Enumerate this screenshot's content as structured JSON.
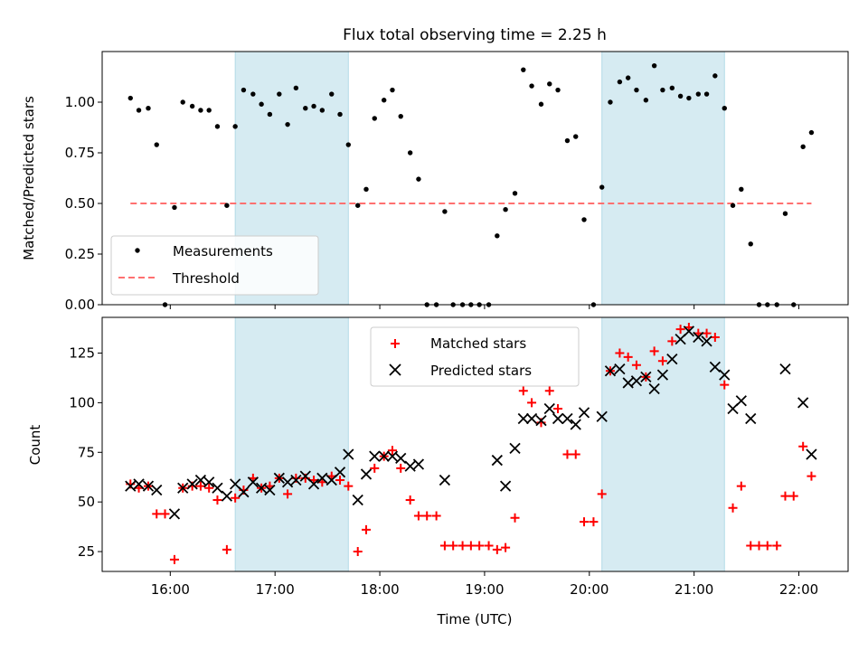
{
  "figure": {
    "title": "Flux total observing time = 2.25 h"
  },
  "chart_data": [
    {
      "type": "scatter",
      "ylabel": "Matched/Predicted stars",
      "xlabel": "",
      "x_unit": "hours UTC",
      "xlim": [
        15.35,
        22.47
      ],
      "ylim": [
        0.0,
        1.25
      ],
      "yticks": [
        0.0,
        0.25,
        0.5,
        0.75,
        1.0
      ],
      "ytick_labels": [
        "0.00",
        "0.25",
        "0.50",
        "0.75",
        "1.00"
      ],
      "grid": false,
      "legend_position": "lower-left",
      "shaded_regions": [
        [
          16.62,
          17.7
        ],
        [
          20.12,
          21.29
        ]
      ],
      "shade_color": "#add8e6",
      "threshold": {
        "name": "Threshold",
        "value": 0.5,
        "x_range": [
          15.62,
          22.12
        ],
        "color": "#ff7070"
      },
      "series": [
        {
          "name": "Measurements",
          "color": "#000000",
          "x": [
            15.62,
            15.7,
            15.79,
            15.87,
            15.95,
            16.04,
            16.12,
            16.21,
            16.29,
            16.37,
            16.45,
            16.54,
            16.62,
            16.7,
            16.79,
            16.87,
            16.95,
            17.04,
            17.12,
            17.2,
            17.29,
            17.37,
            17.45,
            17.54,
            17.62,
            17.7,
            17.79,
            17.87,
            17.95,
            18.04,
            18.12,
            18.2,
            18.29,
            18.37,
            18.45,
            18.54,
            18.62,
            18.7,
            18.79,
            18.87,
            18.95,
            19.04,
            19.12,
            19.2,
            19.29,
            19.37,
            19.45,
            19.54,
            19.62,
            19.7,
            19.79,
            19.87,
            19.95,
            20.04,
            20.12,
            20.2,
            20.29,
            20.37,
            20.45,
            20.54,
            20.62,
            20.7,
            20.79,
            20.87,
            20.95,
            21.04,
            21.12,
            21.2,
            21.29,
            21.37,
            21.45,
            21.54,
            21.62,
            21.7,
            21.79,
            21.87,
            21.95,
            22.04,
            22.12
          ],
          "y": [
            1.02,
            0.96,
            0.97,
            0.79,
            0.0,
            0.48,
            1.0,
            0.98,
            0.96,
            0.96,
            0.88,
            0.49,
            0.88,
            1.06,
            1.04,
            0.99,
            0.94,
            1.04,
            0.89,
            1.07,
            0.97,
            0.98,
            0.96,
            1.04,
            0.94,
            0.79,
            0.49,
            0.57,
            0.92,
            1.01,
            1.06,
            0.93,
            0.75,
            0.62,
            0.0,
            0.0,
            0.46,
            0.0,
            0.0,
            0.0,
            0.0,
            0.0,
            0.34,
            0.47,
            0.55,
            1.16,
            1.08,
            0.99,
            1.09,
            1.06,
            0.81,
            0.83,
            0.42,
            0.0,
            0.58,
            1.0,
            1.1,
            1.12,
            1.06,
            1.01,
            1.18,
            1.06,
            1.07,
            1.03,
            1.02,
            1.04,
            1.04,
            1.13,
            0.97,
            0.49,
            0.57,
            0.3,
            0.0,
            0.0,
            0.0,
            0.45,
            0.0,
            0.78,
            0.85
          ]
        }
      ]
    },
    {
      "type": "scatter",
      "ylabel": "Count",
      "xlabel": "Time (UTC)",
      "x_unit": "hours UTC",
      "xlim": [
        15.35,
        22.47
      ],
      "ylim": [
        15,
        143
      ],
      "yticks": [
        25,
        50,
        75,
        100,
        125
      ],
      "ytick_labels": [
        "25",
        "50",
        "75",
        "100",
        "125"
      ],
      "xticks": [
        16,
        17,
        18,
        19,
        20,
        21,
        22
      ],
      "xtick_labels": [
        "16:00",
        "17:00",
        "18:00",
        "19:00",
        "20:00",
        "21:00",
        "22:00"
      ],
      "grid": false,
      "legend_position": "upper-center",
      "shaded_regions": [
        [
          16.62,
          17.7
        ],
        [
          20.12,
          21.29
        ]
      ],
      "shade_color": "#add8e6",
      "series": [
        {
          "name": "Matched stars",
          "marker": "plus",
          "color": "#ff0000",
          "x": [
            15.62,
            15.7,
            15.79,
            15.87,
            15.95,
            16.04,
            16.12,
            16.21,
            16.29,
            16.37,
            16.45,
            16.54,
            16.62,
            16.7,
            16.79,
            16.87,
            16.95,
            17.04,
            17.12,
            17.2,
            17.29,
            17.37,
            17.45,
            17.54,
            17.62,
            17.7,
            17.79,
            17.87,
            17.95,
            18.04,
            18.12,
            18.2,
            18.29,
            18.37,
            18.45,
            18.54,
            18.62,
            18.7,
            18.79,
            18.87,
            18.95,
            19.04,
            19.12,
            19.2,
            19.29,
            19.37,
            19.45,
            19.54,
            19.62,
            19.7,
            19.79,
            19.87,
            19.95,
            20.04,
            20.12,
            20.2,
            20.29,
            20.37,
            20.45,
            20.54,
            20.62,
            20.7,
            20.79,
            20.87,
            20.95,
            21.04,
            21.12,
            21.2,
            21.29,
            21.37,
            21.45,
            21.54,
            21.62,
            21.7,
            21.79,
            21.87,
            21.95,
            22.04,
            22.12
          ],
          "y": [
            59,
            57,
            58,
            44,
            44,
            21,
            57,
            58,
            58,
            57,
            51,
            26,
            52,
            56,
            62,
            57,
            58,
            62,
            54,
            62,
            62,
            61,
            60,
            63,
            61,
            58,
            25,
            36,
            67,
            73,
            76,
            67,
            51,
            43,
            43,
            43,
            28,
            28,
            28,
            28,
            28,
            28,
            26,
            27,
            42,
            106,
            100,
            90,
            106,
            97,
            74,
            74,
            40,
            40,
            54,
            116,
            125,
            123,
            119,
            113,
            126,
            121,
            131,
            137,
            138,
            135,
            135,
            133,
            109,
            47,
            58,
            28,
            28,
            28,
            28,
            53,
            53,
            78,
            63
          ]
        },
        {
          "name": "Predicted stars",
          "marker": "x",
          "color": "#000000",
          "x": [
            15.62,
            15.7,
            15.79,
            15.87,
            16.04,
            16.12,
            16.21,
            16.29,
            16.37,
            16.45,
            16.54,
            16.62,
            16.7,
            16.79,
            16.87,
            16.95,
            17.04,
            17.12,
            17.2,
            17.29,
            17.37,
            17.45,
            17.54,
            17.62,
            17.7,
            17.79,
            17.87,
            17.95,
            18.04,
            18.12,
            18.2,
            18.29,
            18.37,
            18.62,
            19.12,
            19.2,
            19.29,
            19.37,
            19.45,
            19.54,
            19.62,
            19.7,
            19.79,
            19.87,
            19.95,
            20.12,
            20.2,
            20.29,
            20.37,
            20.45,
            20.54,
            20.62,
            20.7,
            20.79,
            20.87,
            20.95,
            21.04,
            21.12,
            21.2,
            21.29,
            21.37,
            21.45,
            21.54,
            21.87,
            22.04,
            22.12
          ],
          "y": [
            58,
            59,
            58,
            56,
            44,
            57,
            59,
            61,
            60,
            57,
            53,
            59,
            55,
            60,
            57,
            56,
            62,
            60,
            61,
            63,
            59,
            62,
            61,
            65,
            74,
            51,
            64,
            73,
            73,
            73,
            72,
            68,
            69,
            61,
            71,
            58,
            77,
            92,
            92,
            91,
            97,
            92,
            92,
            89,
            95,
            93,
            116,
            117,
            110,
            111,
            113,
            107,
            114,
            122,
            132,
            136,
            133,
            131,
            118,
            114,
            97,
            101,
            92,
            117,
            100,
            74
          ]
        }
      ]
    }
  ]
}
